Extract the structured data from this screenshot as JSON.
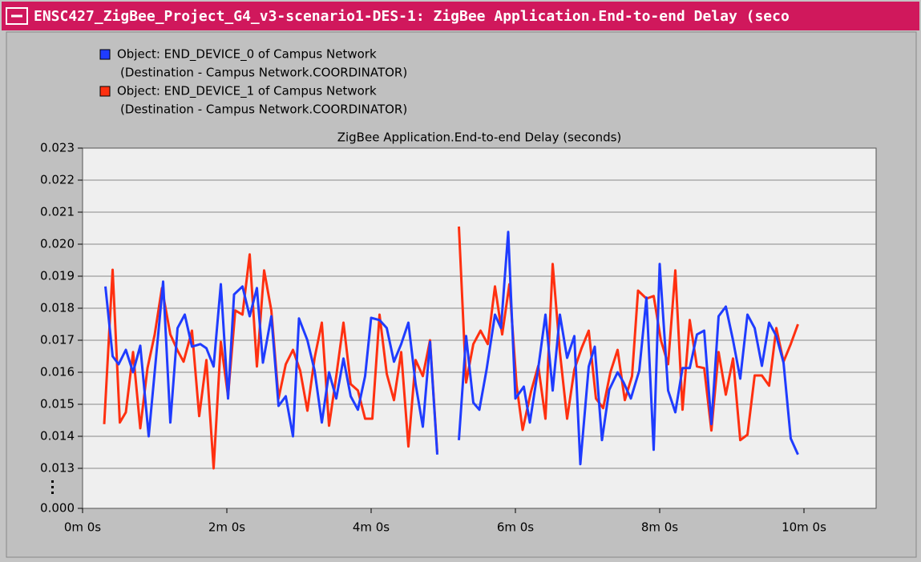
{
  "window_title": "ENSC427_ZigBee_Project_G4_v3-scenario1-DES-1: ZigBee Application.End-to-end Delay (seco",
  "chart_data": {
    "type": "line",
    "title": "ZigBee Application.End-to-end Delay (seconds)",
    "xlim": [
      0,
      660
    ],
    "xticks": [
      {
        "value": 0,
        "label": "0m 0s"
      },
      {
        "value": 120,
        "label": "2m 0s"
      },
      {
        "value": 240,
        "label": "4m 0s"
      },
      {
        "value": 360,
        "label": "6m 0s"
      },
      {
        "value": 480,
        "label": "8m 0s"
      },
      {
        "value": 600,
        "label": "10m 0s"
      }
    ],
    "ylim": [
      0,
      0.023
    ],
    "ybreak": [
      0,
      0.013
    ],
    "yticks": [
      {
        "value": 0,
        "label": "0.000"
      },
      0.013,
      0.014,
      0.015,
      0.016,
      0.017,
      0.018,
      0.019,
      {
        "value": 0.02,
        "label": "0.020"
      },
      0.021,
      0.022,
      0.023
    ],
    "grid": true,
    "series": [
      {
        "name": "Object: END_DEVICE_0 of Campus Network",
        "detail": "(Destination - Campus Network.COORDINATOR)",
        "color": "#1f3cff",
        "x": [
          19,
          25,
          30,
          36,
          42,
          48,
          55,
          67,
          73,
          79,
          85,
          91,
          98,
          103,
          109,
          115,
          121,
          126,
          133,
          139,
          145,
          150,
          157,
          163,
          169,
          175,
          180,
          187,
          193,
          199,
          205,
          211,
          217,
          223,
          229,
          235,
          240,
          247,
          253,
          259,
          265,
          271,
          277,
          283,
          289,
          295,
          null,
          313,
          319,
          325,
          330,
          336,
          343,
          348,
          354,
          360,
          367,
          372,
          379,
          385,
          391,
          397,
          403,
          409,
          414,
          421,
          426,
          432,
          438,
          445,
          450,
          456,
          463,
          469,
          475,
          480,
          487,
          493,
          499,
          505,
          511,
          517,
          523,
          529,
          535,
          541,
          547,
          553,
          559,
          565,
          571,
          577,
          583,
          589,
          595
        ],
        "values": [
          0.01868,
          0.0165,
          0.01625,
          0.0167,
          0.016,
          0.01683,
          0.014,
          0.01883,
          0.01443,
          0.01738,
          0.0178,
          0.0168,
          0.01688,
          0.01675,
          0.01618,
          0.01875,
          0.01518,
          0.01843,
          0.01868,
          0.01775,
          0.01863,
          0.0163,
          0.01775,
          0.01495,
          0.01525,
          0.014,
          0.01768,
          0.017,
          0.01605,
          0.01443,
          0.016,
          0.01518,
          0.01643,
          0.01525,
          0.01483,
          0.01588,
          0.0177,
          0.01763,
          0.01738,
          0.01633,
          0.01688,
          0.01755,
          0.01563,
          0.0143,
          0.01695,
          0.01343,
          null,
          0.01388,
          0.01713,
          0.01505,
          0.01483,
          0.01608,
          0.0178,
          0.01738,
          0.02038,
          0.01518,
          0.01555,
          0.01443,
          0.01613,
          0.0178,
          0.01543,
          0.0178,
          0.01645,
          0.01713,
          0.01313,
          0.01618,
          0.0168,
          0.01388,
          0.01545,
          0.016,
          0.01568,
          0.01518,
          0.01605,
          0.01833,
          0.01358,
          0.01938,
          0.01543,
          0.01475,
          0.01613,
          0.01613,
          0.01718,
          0.0173,
          0.01438,
          0.01775,
          0.01805,
          0.017,
          0.0158,
          0.0178,
          0.01738,
          0.0162,
          0.01755,
          0.01713,
          0.0163,
          0.01393,
          0.01343
        ]
      },
      {
        "name": "Object: END_DEVICE_1 of Campus Network",
        "detail": "(Destination - Campus Network.COORDINATOR)",
        "color": "#ff3010",
        "x": [
          18,
          25,
          31,
          36,
          42,
          48,
          54,
          60,
          66,
          73,
          79,
          84,
          91,
          97,
          103,
          109,
          115,
          121,
          127,
          133,
          139,
          145,
          151,
          157,
          163,
          169,
          175,
          181,
          187,
          193,
          199,
          205,
          211,
          217,
          223,
          229,
          235,
          241,
          247,
          253,
          259,
          265,
          271,
          277,
          283,
          289,
          295,
          null,
          313,
          319,
          325,
          331,
          337,
          343,
          349,
          355,
          361,
          366,
          373,
          379,
          385,
          391,
          397,
          403,
          409,
          415,
          421,
          427,
          433,
          439,
          445,
          451,
          457,
          462,
          469,
          475,
          481,
          487,
          493,
          499,
          505,
          511,
          517,
          523,
          529,
          535,
          541,
          547,
          553,
          559,
          565,
          571,
          577,
          583,
          589,
          595
        ],
        "values": [
          0.01438,
          0.0192,
          0.01443,
          0.01475,
          0.01663,
          0.01425,
          0.01613,
          0.01718,
          0.01863,
          0.01718,
          0.01668,
          0.01633,
          0.0173,
          0.01463,
          0.01638,
          0.013,
          0.01695,
          0.01525,
          0.01793,
          0.0178,
          0.01968,
          0.01618,
          0.01918,
          0.01793,
          0.01518,
          0.01625,
          0.0167,
          0.01605,
          0.0148,
          0.01645,
          0.01755,
          0.01433,
          0.01588,
          0.01755,
          0.01563,
          0.01543,
          0.01455,
          0.01455,
          0.0178,
          0.01595,
          0.01513,
          0.01663,
          0.01368,
          0.01638,
          0.01588,
          0.017,
          0.0135,
          null,
          0.02055,
          0.01568,
          0.01688,
          0.0173,
          0.01688,
          0.01868,
          0.01718,
          0.01875,
          0.01558,
          0.0142,
          0.0154,
          0.0162,
          0.01455,
          0.01938,
          0.01663,
          0.01455,
          0.01608,
          0.01675,
          0.0173,
          0.01518,
          0.01488,
          0.016,
          0.0167,
          0.01513,
          0.01588,
          0.01855,
          0.0183,
          0.01838,
          0.017,
          0.01625,
          0.01918,
          0.01483,
          0.01763,
          0.01618,
          0.01613,
          0.01418,
          0.01663,
          0.0153,
          0.01643,
          0.01388,
          0.01405,
          0.0159,
          0.0159,
          0.01558,
          0.01738,
          0.01633,
          0.01688,
          0.0175
        ]
      }
    ]
  }
}
